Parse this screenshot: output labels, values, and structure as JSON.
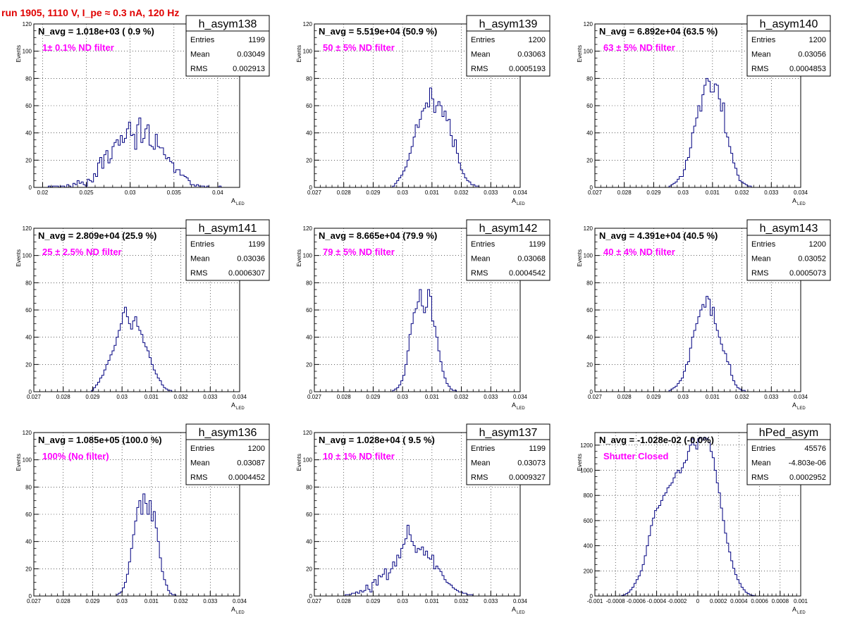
{
  "title": "run 1905,  1110 V, I_pe ≈ 0.3 nA, 120 Hz",
  "colors": {
    "title": "#e00000",
    "filter_label": "#ff00ff",
    "hist_line": "#000080"
  },
  "stats_labels": {
    "entries": "Entries",
    "mean": "Mean",
    "rms": "RMS"
  },
  "chart_data": [
    {
      "type": "histogram",
      "name": "h_asym138",
      "xlabel": "A",
      "xlabel_sub": "LED",
      "ylabel": "Events",
      "xlim": [
        0.019,
        0.0425
      ],
      "ylim": [
        0,
        120
      ],
      "xticks": [
        0.02,
        0.025,
        0.03,
        0.035,
        0.04
      ],
      "xtick_labels": [
        "0.02",
        "0.025",
        "0.03",
        "0.035",
        "0.04"
      ],
      "yticks": [
        0,
        20,
        40,
        60,
        80,
        100,
        120
      ],
      "ytick_labels": [
        "0",
        "20",
        "40",
        "60",
        "80",
        "100",
        "120"
      ],
      "nbins": 100,
      "values": [
        0,
        0,
        0,
        0,
        0,
        0,
        0,
        1,
        0,
        1,
        1,
        1,
        0,
        1,
        1,
        0,
        2,
        1,
        0,
        3,
        2,
        5,
        3,
        4,
        2,
        1,
        6,
        5,
        4,
        10,
        8,
        18,
        22,
        14,
        24,
        27,
        18,
        21,
        30,
        33,
        35,
        31,
        38,
        33,
        36,
        43,
        48,
        38,
        39,
        28,
        46,
        51,
        33,
        36,
        43,
        46,
        31,
        30,
        28,
        39,
        30,
        29,
        29,
        24,
        21,
        22,
        19,
        18,
        11,
        13,
        13,
        9,
        9,
        8,
        7,
        5,
        2,
        2,
        1,
        2,
        1,
        1,
        1,
        0,
        1,
        0,
        0,
        0,
        0,
        0,
        1,
        0,
        0,
        0,
        0,
        0,
        0,
        0,
        0,
        0
      ],
      "navg_label": "N_avg = 1.018e+03 ( 0.9 %)",
      "filter_label": "1± 0.1% ND filter",
      "stats": {
        "entries": "1199",
        "mean": "0.03049",
        "rms": "0.002913"
      }
    },
    {
      "type": "histogram",
      "name": "h_asym139",
      "xlabel": "A",
      "xlabel_sub": "LED",
      "ylabel": "Events",
      "xlim": [
        0.027,
        0.034
      ],
      "ylim": [
        0,
        120
      ],
      "xticks": [
        0.027,
        0.028,
        0.029,
        0.03,
        0.031,
        0.032,
        0.033,
        0.034
      ],
      "xtick_labels": [
        "0.027",
        "0.028",
        "0.029",
        "0.03",
        "0.031",
        "0.032",
        "0.033",
        "0.034"
      ],
      "yticks": [
        0,
        20,
        40,
        60,
        80,
        100,
        120
      ],
      "ytick_labels": [
        "0",
        "20",
        "40",
        "60",
        "80",
        "100",
        "120"
      ],
      "nbins": 100,
      "values": [
        0,
        0,
        0,
        0,
        0,
        0,
        0,
        0,
        0,
        0,
        0,
        0,
        0,
        0,
        0,
        0,
        0,
        0,
        0,
        0,
        0,
        0,
        0,
        0,
        0,
        0,
        0,
        0,
        0,
        0,
        0,
        0,
        0,
        0,
        0,
        0,
        0,
        0,
        1,
        3,
        5,
        7,
        9,
        12,
        15,
        20,
        25,
        30,
        37,
        46,
        44,
        50,
        56,
        58,
        62,
        59,
        73,
        65,
        55,
        60,
        63,
        60,
        52,
        56,
        49,
        50,
        38,
        30,
        35,
        25,
        18,
        13,
        10,
        7,
        5,
        4,
        2,
        2,
        1,
        1,
        0,
        0,
        0,
        0,
        0,
        0,
        0,
        0,
        0,
        0,
        0,
        0,
        0,
        0,
        0,
        0,
        0,
        0,
        0,
        0
      ],
      "navg_label": "N_avg = 5.519e+04 (50.9 %)",
      "filter_label": "50 ± 5% ND filter",
      "stats": {
        "entries": "1200",
        "mean": "0.03063",
        "rms": "0.0005193"
      }
    },
    {
      "type": "histogram",
      "name": "h_asym140",
      "xlabel": "A",
      "xlabel_sub": "LED",
      "ylabel": "Events",
      "xlim": [
        0.027,
        0.034
      ],
      "ylim": [
        0,
        120
      ],
      "xticks": [
        0.027,
        0.028,
        0.029,
        0.03,
        0.031,
        0.032,
        0.033,
        0.034
      ],
      "xtick_labels": [
        "0.027",
        "0.028",
        "0.029",
        "0.03",
        "0.031",
        "0.032",
        "0.033",
        "0.034"
      ],
      "yticks": [
        0,
        20,
        40,
        60,
        80,
        100,
        120
      ],
      "ytick_labels": [
        "0",
        "20",
        "40",
        "60",
        "80",
        "100",
        "120"
      ],
      "nbins": 100,
      "values": [
        0,
        0,
        0,
        0,
        0,
        0,
        0,
        0,
        0,
        0,
        0,
        0,
        0,
        0,
        0,
        0,
        0,
        0,
        0,
        0,
        0,
        0,
        0,
        0,
        0,
        0,
        0,
        0,
        0,
        0,
        0,
        0,
        0,
        0,
        0,
        0,
        1,
        2,
        3,
        4,
        6,
        8,
        8,
        13,
        20,
        22,
        29,
        40,
        45,
        51,
        60,
        56,
        68,
        75,
        80,
        78,
        70,
        70,
        76,
        75,
        65,
        56,
        62,
        40,
        37,
        30,
        25,
        18,
        14,
        9,
        5,
        4,
        3,
        2,
        1,
        1,
        0,
        0,
        0,
        0,
        0,
        0,
        0,
        0,
        0,
        0,
        0,
        0,
        0,
        0,
        0,
        0,
        0,
        0,
        0,
        0,
        0,
        0,
        0,
        0
      ],
      "navg_label": "N_avg = 6.892e+04 (63.5 %)",
      "filter_label": "63 ± 5% ND filter",
      "stats": {
        "entries": "1200",
        "mean": "0.03056",
        "rms": "0.0004853"
      }
    },
    {
      "type": "histogram",
      "name": "h_asym141",
      "xlabel": "A",
      "xlabel_sub": "LED",
      "ylabel": "Events",
      "xlim": [
        0.027,
        0.034
      ],
      "ylim": [
        0,
        120
      ],
      "xticks": [
        0.027,
        0.028,
        0.029,
        0.03,
        0.031,
        0.032,
        0.033,
        0.034
      ],
      "xtick_labels": [
        "0.027",
        "0.028",
        "0.029",
        "0.03",
        "0.031",
        "0.032",
        "0.033",
        "0.034"
      ],
      "yticks": [
        0,
        20,
        40,
        60,
        80,
        100,
        120
      ],
      "ytick_labels": [
        "0",
        "20",
        "40",
        "60",
        "80",
        "100",
        "120"
      ],
      "nbins": 100,
      "values": [
        0,
        0,
        0,
        0,
        0,
        0,
        0,
        0,
        0,
        0,
        0,
        0,
        0,
        0,
        0,
        0,
        0,
        0,
        0,
        0,
        0,
        0,
        0,
        0,
        0,
        0,
        0,
        0,
        1,
        3,
        5,
        7,
        10,
        12,
        16,
        20,
        23,
        27,
        30,
        34,
        40,
        45,
        50,
        58,
        62,
        55,
        50,
        46,
        52,
        55,
        48,
        45,
        42,
        36,
        33,
        30,
        25,
        20,
        16,
        13,
        10,
        8,
        5,
        3,
        2,
        1,
        1,
        0,
        0,
        0,
        0,
        0,
        0,
        0,
        0,
        0,
        0,
        0,
        0,
        0,
        0,
        0,
        0,
        0,
        0,
        0,
        0,
        0,
        0,
        0,
        0,
        0,
        0,
        0,
        0,
        0,
        0,
        0,
        0,
        0
      ],
      "navg_label": "N_avg = 2.809e+04 (25.9 %)",
      "filter_label": "25 ± 2.5% ND filter",
      "stats": {
        "entries": "1199",
        "mean": "0.03036",
        "rms": "0.0006307"
      }
    },
    {
      "type": "histogram",
      "name": "h_asym142",
      "xlabel": "A",
      "xlabel_sub": "LED",
      "ylabel": "Events",
      "xlim": [
        0.027,
        0.034
      ],
      "ylim": [
        0,
        120
      ],
      "xticks": [
        0.027,
        0.028,
        0.029,
        0.03,
        0.031,
        0.032,
        0.033,
        0.034
      ],
      "xtick_labels": [
        "0.027",
        "0.028",
        "0.029",
        "0.03",
        "0.031",
        "0.032",
        "0.033",
        "0.034"
      ],
      "yticks": [
        0,
        20,
        40,
        60,
        80,
        100,
        120
      ],
      "ytick_labels": [
        "0",
        "20",
        "40",
        "60",
        "80",
        "100",
        "120"
      ],
      "nbins": 100,
      "values": [
        0,
        0,
        0,
        0,
        0,
        0,
        0,
        0,
        0,
        0,
        0,
        0,
        0,
        0,
        0,
        0,
        0,
        0,
        0,
        0,
        0,
        0,
        0,
        0,
        0,
        0,
        0,
        0,
        0,
        0,
        0,
        0,
        0,
        0,
        0,
        0,
        0,
        0,
        1,
        2,
        3,
        5,
        8,
        12,
        20,
        30,
        42,
        50,
        58,
        61,
        66,
        75,
        63,
        58,
        62,
        75,
        70,
        52,
        48,
        40,
        30,
        22,
        15,
        10,
        6,
        4,
        2,
        1,
        1,
        0,
        0,
        0,
        0,
        0,
        0,
        0,
        0,
        0,
        0,
        0,
        0,
        0,
        0,
        0,
        0,
        0,
        0,
        0,
        0,
        0,
        0,
        0,
        0,
        0,
        0,
        0,
        0,
        0,
        0,
        0
      ],
      "navg_label": "N_avg = 8.665e+04 (79.9 %)",
      "filter_label": "79 ± 5% ND filter",
      "stats": {
        "entries": "1199",
        "mean": "0.03068",
        "rms": "0.0004542"
      }
    },
    {
      "type": "histogram",
      "name": "h_asym143",
      "xlabel": "A",
      "xlabel_sub": "LED",
      "ylabel": "Events",
      "xlim": [
        0.027,
        0.034
      ],
      "ylim": [
        0,
        120
      ],
      "xticks": [
        0.027,
        0.028,
        0.029,
        0.03,
        0.031,
        0.032,
        0.033,
        0.034
      ],
      "xtick_labels": [
        "0.027",
        "0.028",
        "0.029",
        "0.03",
        "0.031",
        "0.032",
        "0.033",
        "0.034"
      ],
      "yticks": [
        0,
        20,
        40,
        60,
        80,
        100,
        120
      ],
      "ytick_labels": [
        "0",
        "20",
        "40",
        "60",
        "80",
        "100",
        "120"
      ],
      "nbins": 100,
      "values": [
        0,
        0,
        0,
        0,
        0,
        0,
        0,
        0,
        0,
        0,
        0,
        0,
        0,
        0,
        0,
        0,
        0,
        0,
        0,
        0,
        0,
        0,
        0,
        0,
        0,
        0,
        0,
        0,
        0,
        0,
        0,
        0,
        0,
        0,
        0,
        0,
        1,
        2,
        3,
        4,
        6,
        8,
        10,
        15,
        20,
        22,
        32,
        40,
        45,
        50,
        55,
        60,
        64,
        62,
        70,
        68,
        56,
        62,
        50,
        45,
        40,
        35,
        30,
        28,
        22,
        20,
        12,
        8,
        5,
        3,
        2,
        1,
        1,
        0,
        0,
        0,
        0,
        0,
        0,
        0,
        0,
        0,
        0,
        0,
        0,
        0,
        0,
        0,
        0,
        0,
        0,
        0,
        0,
        0,
        0,
        0,
        0,
        0,
        0,
        0
      ],
      "navg_label": "N_avg = 4.391e+04 (40.5 %)",
      "filter_label": "40 ± 4% ND filter",
      "stats": {
        "entries": "1200",
        "mean": "0.03052",
        "rms": "0.0005073"
      }
    },
    {
      "type": "histogram",
      "name": "h_asym136",
      "xlabel": "A",
      "xlabel_sub": "LED",
      "ylabel": "Events",
      "xlim": [
        0.027,
        0.034
      ],
      "ylim": [
        0,
        120
      ],
      "xticks": [
        0.027,
        0.028,
        0.029,
        0.03,
        0.031,
        0.032,
        0.033,
        0.034
      ],
      "xtick_labels": [
        "0.027",
        "0.028",
        "0.029",
        "0.03",
        "0.031",
        "0.032",
        "0.033",
        "0.034"
      ],
      "yticks": [
        0,
        20,
        40,
        60,
        80,
        100,
        120
      ],
      "ytick_labels": [
        "0",
        "20",
        "40",
        "60",
        "80",
        "100",
        "120"
      ],
      "nbins": 100,
      "values": [
        0,
        0,
        0,
        0,
        0,
        0,
        0,
        0,
        0,
        0,
        0,
        0,
        0,
        0,
        0,
        0,
        0,
        0,
        0,
        0,
        0,
        0,
        0,
        0,
        0,
        0,
        0,
        0,
        0,
        0,
        0,
        0,
        0,
        0,
        0,
        0,
        0,
        0,
        0,
        0,
        1,
        2,
        3,
        6,
        10,
        16,
        25,
        35,
        45,
        55,
        65,
        70,
        60,
        75,
        68,
        60,
        70,
        55,
        62,
        50,
        40,
        28,
        18,
        12,
        8,
        4,
        2,
        1,
        1,
        0,
        0,
        0,
        0,
        0,
        0,
        0,
        0,
        0,
        0,
        0,
        0,
        0,
        0,
        0,
        0,
        0,
        0,
        0,
        0,
        0,
        0,
        0,
        0,
        0,
        0,
        0,
        0,
        0,
        0,
        0
      ],
      "navg_label": "N_avg = 1.085e+05 (100.0 %)",
      "filter_label": "100% (No filter)",
      "stats": {
        "entries": "1200",
        "mean": "0.03087",
        "rms": "0.0004452"
      }
    },
    {
      "type": "histogram",
      "name": "h_asym137",
      "xlabel": "A",
      "xlabel_sub": "LED",
      "ylabel": "Events",
      "xlim": [
        0.027,
        0.034
      ],
      "ylim": [
        0,
        120
      ],
      "xticks": [
        0.027,
        0.028,
        0.029,
        0.03,
        0.031,
        0.032,
        0.033,
        0.034
      ],
      "xtick_labels": [
        "0.027",
        "0.028",
        "0.029",
        "0.03",
        "0.031",
        "0.032",
        "0.033",
        "0.034"
      ],
      "yticks": [
        0,
        20,
        40,
        60,
        80,
        100,
        120
      ],
      "ytick_labels": [
        "0",
        "20",
        "40",
        "60",
        "80",
        "100",
        "120"
      ],
      "nbins": 100,
      "values": [
        0,
        0,
        0,
        0,
        0,
        0,
        0,
        0,
        0,
        0,
        0,
        0,
        0,
        0,
        0,
        1,
        1,
        1,
        2,
        2,
        3,
        2,
        4,
        3,
        4,
        8,
        5,
        3,
        10,
        12,
        8,
        15,
        14,
        16,
        20,
        12,
        17,
        20,
        25,
        22,
        30,
        28,
        35,
        38,
        42,
        52,
        45,
        40,
        37,
        32,
        35,
        34,
        36,
        30,
        33,
        28,
        27,
        30,
        20,
        22,
        20,
        18,
        15,
        12,
        10,
        9,
        8,
        6,
        5,
        4,
        3,
        3,
        2,
        2,
        1,
        1,
        1,
        0,
        0,
        0,
        0,
        0,
        0,
        0,
        0,
        0,
        0,
        0,
        0,
        0,
        0,
        0,
        0,
        0,
        0,
        0,
        0,
        0,
        0,
        0
      ],
      "navg_label": "N_avg = 1.028e+04 ( 9.5 %)",
      "filter_label": "10 ± 1% ND filter",
      "stats": {
        "entries": "1199",
        "mean": "0.03073",
        "rms": "0.0009327"
      }
    },
    {
      "type": "histogram",
      "name": "hPed_asym",
      "xlabel": "A",
      "xlabel_sub": "LED",
      "ylabel": "Events",
      "xlim": [
        -0.001,
        0.001
      ],
      "ylim": [
        0,
        1300
      ],
      "xticks": [
        -0.001,
        -0.0008,
        -0.0006,
        -0.0004,
        -0.0002,
        0,
        0.0002,
        0.0004,
        0.0006,
        0.0008,
        0.001
      ],
      "xtick_labels": [
        "-0.001",
        "-0.0008",
        "-0.0006",
        "-0.0004",
        "-0.0002",
        "0",
        "0.0002",
        "0.0004",
        "0.0006",
        "0.0008",
        "0.001"
      ],
      "yticks": [
        0,
        200,
        400,
        600,
        800,
        1000,
        1200
      ],
      "ytick_labels": [
        "0",
        "200",
        "400",
        "600",
        "800",
        "1000",
        "1200"
      ],
      "nbins": 100,
      "values": [
        0,
        0,
        0,
        0,
        0,
        0,
        0,
        0,
        0,
        0,
        0,
        0,
        0,
        5,
        10,
        20,
        30,
        50,
        70,
        100,
        130,
        160,
        200,
        250,
        320,
        400,
        480,
        560,
        620,
        680,
        700,
        720,
        760,
        800,
        820,
        860,
        880,
        900,
        940,
        980,
        1000,
        980,
        1020,
        1060,
        1080,
        1150,
        1200,
        1250,
        1200,
        1170,
        1250,
        1260,
        1240,
        1260,
        1250,
        1220,
        1150,
        1100,
        1000,
        900,
        820,
        700,
        600,
        500,
        420,
        350,
        280,
        220,
        170,
        130,
        100,
        70,
        50,
        30,
        20,
        10,
        5,
        2,
        0,
        0,
        0,
        0,
        0,
        0,
        0,
        0,
        0,
        0,
        0,
        0,
        0,
        0,
        0,
        0,
        0,
        0,
        0,
        0,
        0,
        0
      ],
      "navg_label": "N_avg = -1.028e-02 (-0.0%)",
      "filter_label": "Shutter Closed",
      "stats": {
        "entries": "45576",
        "mean": "-4.803e-06",
        "rms": "0.0002952"
      }
    }
  ]
}
